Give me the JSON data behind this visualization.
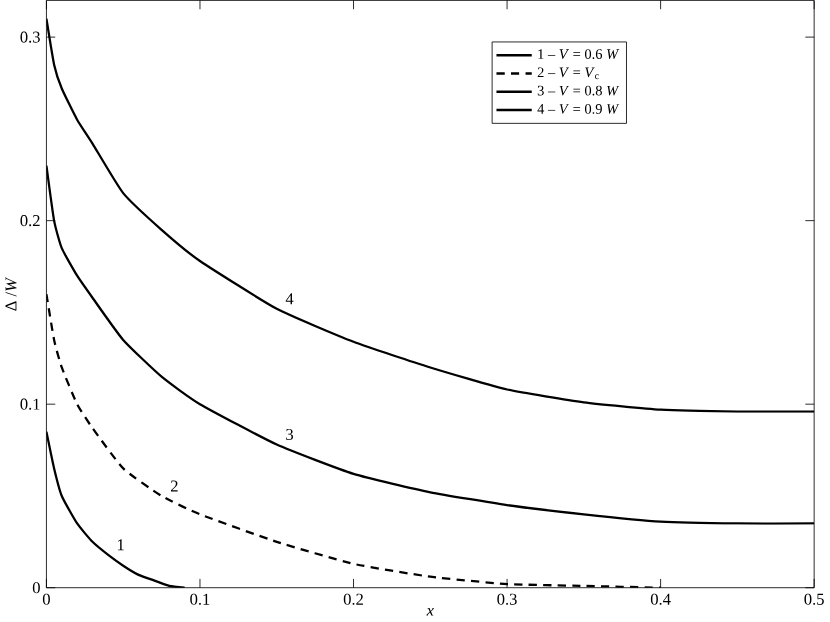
{
  "chart_data": {
    "type": "line",
    "xlabel": "x",
    "ylabel": "Δ /*W*",
    "xlim": [
      0,
      0.5
    ],
    "ylim": [
      0,
      0.32
    ],
    "xticks": [
      0,
      0.1,
      0.2,
      0.3,
      0.4,
      0.5
    ],
    "yticks": [
      0,
      0.1,
      0.2,
      0.3
    ],
    "legend": "top right",
    "grid": false,
    "series": [
      {
        "name": "1 – *V* = 0.6 *W*",
        "color": "#000000",
        "line_style": "solid",
        "x": [
          0,
          0.005,
          0.01,
          0.02,
          0.03,
          0.04,
          0.05,
          0.06,
          0.07,
          0.08,
          0.09
        ],
        "values": [
          0.085,
          0.065,
          0.05,
          0.035,
          0.025,
          0.018,
          0.012,
          0.007,
          0.004,
          0.001,
          0
        ]
      },
      {
        "name": "2 – *V* = *V*$_{c}$",
        "color": "#000000",
        "line_style": "dashed",
        "x": [
          0,
          0.005,
          0.01,
          0.02,
          0.03,
          0.05,
          0.075,
          0.1,
          0.15,
          0.2,
          0.25,
          0.3,
          0.35,
          0.4
        ],
        "values": [
          0.16,
          0.135,
          0.12,
          0.1,
          0.087,
          0.065,
          0.05,
          0.04,
          0.025,
          0.013,
          0.006,
          0.002,
          0.001,
          0
        ]
      },
      {
        "name": "3 – *V* = 0.8 *W*",
        "color": "#000000",
        "line_style": "solid",
        "x": [
          0,
          0.005,
          0.01,
          0.02,
          0.03,
          0.05,
          0.075,
          0.1,
          0.15,
          0.2,
          0.25,
          0.3,
          0.35,
          0.4,
          0.45,
          0.5
        ],
        "values": [
          0.23,
          0.2,
          0.185,
          0.17,
          0.158,
          0.135,
          0.115,
          0.1,
          0.078,
          0.062,
          0.052,
          0.045,
          0.04,
          0.036,
          0.035,
          0.035
        ]
      },
      {
        "name": "4 – *V* = 0.9 *W*",
        "color": "#000000",
        "line_style": "solid",
        "x": [
          0,
          0.005,
          0.01,
          0.02,
          0.03,
          0.05,
          0.075,
          0.1,
          0.15,
          0.2,
          0.25,
          0.3,
          0.35,
          0.4,
          0.45,
          0.5
        ],
        "values": [
          0.31,
          0.285,
          0.272,
          0.255,
          0.242,
          0.215,
          0.195,
          0.178,
          0.152,
          0.134,
          0.12,
          0.108,
          0.101,
          0.097,
          0.096,
          0.096
        ]
      }
    ],
    "annotations": [
      {
        "text": "1",
        "x": 0.04,
        "y": 0.018
      },
      {
        "text": "2",
        "x": 0.075,
        "y": 0.05
      },
      {
        "text": "3",
        "x": 0.15,
        "y": 0.078
      },
      {
        "text": "4",
        "x": 0.15,
        "y": 0.152
      }
    ]
  }
}
